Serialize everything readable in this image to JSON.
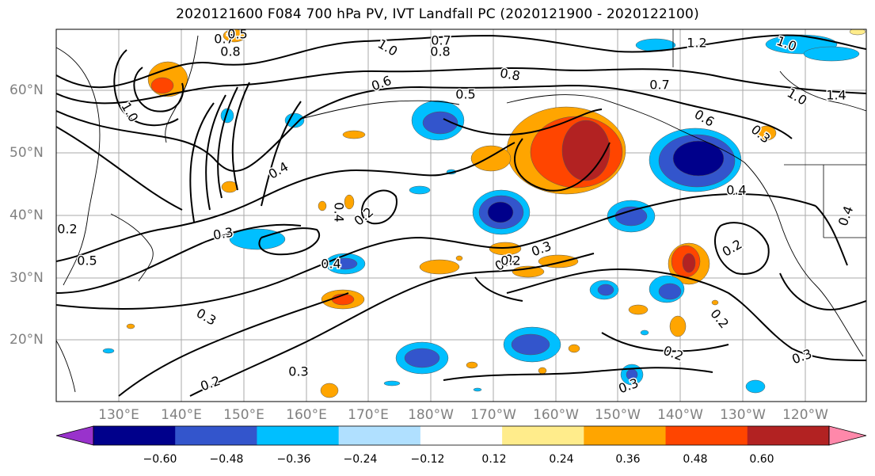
{
  "title": "2020121600 F084 700 hPa PV, IVT Landfall PC (2020121900 - 2020122100)",
  "lat_labels": [
    "60°N",
    "50°N",
    "40°N",
    "30°N",
    "20°N"
  ],
  "lon_labels": [
    "130°E",
    "140°E",
    "150°E",
    "160°E",
    "170°E",
    "180°W",
    "170°W",
    "160°W",
    "150°W",
    "140°W",
    "130°W",
    "120°W"
  ],
  "contour_labels": [
    "0.7",
    "0.8",
    "1.0",
    "0.7",
    "0.8",
    "1.2",
    "1.0",
    "1.0",
    "1.4",
    "1.0",
    "0.6",
    "0.5",
    "0.8",
    "0.7",
    "0.6",
    "0.4",
    "0.4",
    "0.4",
    "0.3",
    "0.2",
    "0.3",
    "0.4",
    "0.5",
    "0.4",
    "0.2",
    "0.3",
    "0.2",
    "0.2",
    "0.3",
    "0.2",
    "0.3",
    "0.2",
    "0.3",
    "0.2",
    "0.2",
    "0.3",
    "0.5"
  ],
  "colorbar": {
    "ticks": [
      "−0.60",
      "−0.48",
      "−0.36",
      "−0.24",
      "−0.12",
      "0.12",
      "0.24",
      "0.36",
      "0.48",
      "0.60"
    ],
    "colors": [
      "#9932cc",
      "#00008b",
      "#3355cc",
      "#00bfff",
      "#b0e0ff",
      "#ffffff",
      "#ffec8b",
      "#ffa500",
      "#ff4500",
      "#b22222",
      "#ff88aa"
    ]
  },
  "palette": {
    "neg_strong": "#00008b",
    "neg_mid": "#3355cc",
    "neg_weak": "#00bfff",
    "pos_weak": "#ffa500",
    "pos_mid": "#ff4500",
    "pos_strong": "#b22222",
    "pale_yellow": "#ffec8b"
  }
}
